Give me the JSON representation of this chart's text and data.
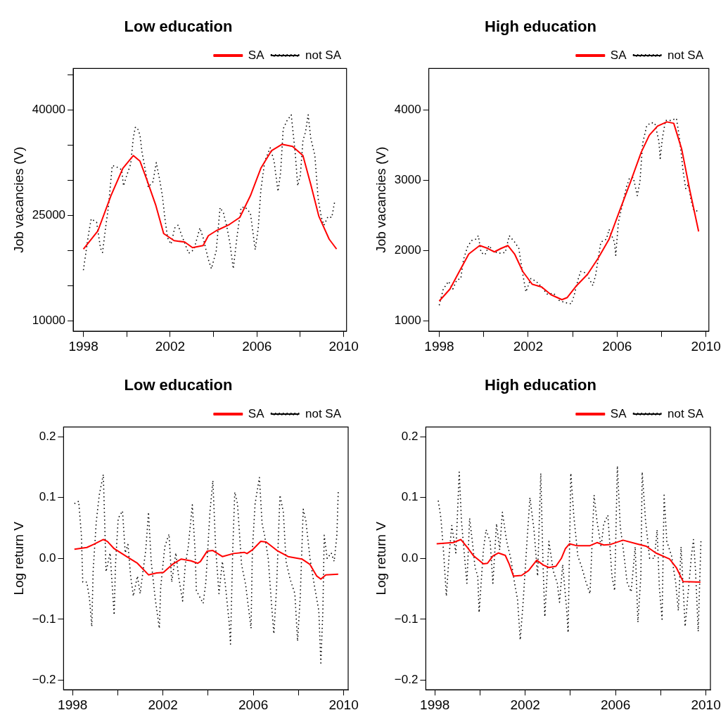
{
  "chart_data": [
    {
      "type": "line",
      "title": "Low education",
      "ylabel": "Job vacancies (V)",
      "legend": "top right",
      "xlim": [
        1997.53,
        2010.13
      ],
      "xticks": [
        1998,
        {
          "value": 2000,
          "label": null
        },
        2002,
        {
          "value": 2004,
          "label": null
        },
        2006,
        {
          "value": 2008,
          "label": null
        },
        2010
      ],
      "ylim": [
        8500,
        45900
      ],
      "yticks": [
        10000,
        {
          "value": 15000,
          "label": null
        },
        {
          "value": 20000,
          "label": null
        },
        25000,
        {
          "value": 30000,
          "label": null
        },
        {
          "value": 35000,
          "label": null
        },
        40000,
        {
          "value": 45000,
          "label": null
        }
      ],
      "series": [
        {
          "name": "SA",
          "color": "#ff0000",
          "line_style": "solid",
          "x": [
            1998.0,
            1998.67,
            1999.27,
            1999.82,
            2000.3,
            2000.61,
            2000.91,
            2001.33,
            2001.7,
            2002.18,
            2002.67,
            2003.03,
            2003.52,
            2003.76,
            2004.12,
            2004.73,
            2005.21,
            2005.7,
            2006.18,
            2006.67,
            2007.15,
            2007.64,
            2008.12,
            2008.48,
            2008.85,
            2009.33,
            2009.67
          ],
          "values": [
            20200,
            22800,
            27800,
            31700,
            33500,
            32700,
            30200,
            26500,
            22400,
            21400,
            21200,
            20400,
            20700,
            22100,
            22800,
            23700,
            24700,
            27800,
            31700,
            34200,
            35100,
            34800,
            33500,
            29400,
            24900,
            21600,
            20200
          ]
        },
        {
          "name": "not SA",
          "color": "#000000",
          "line_style": "dotted",
          "x": [
            1998.0,
            1998.12,
            1998.24,
            1998.36,
            1998.61,
            1998.79,
            1998.88,
            1999.03,
            1999.15,
            1999.33,
            1999.52,
            1999.76,
            1999.85,
            2000.0,
            2000.18,
            2000.3,
            2000.39,
            2000.48,
            2000.61,
            2000.7,
            2000.85,
            2000.99,
            2001.21,
            2001.36,
            2001.52,
            2001.64,
            2001.76,
            2001.88,
            2002.04,
            2002.21,
            2002.36,
            2002.55,
            2002.85,
            2003.09,
            2003.37,
            2003.52,
            2003.76,
            2003.9,
            2004.12,
            2004.3,
            2004.46,
            2004.61,
            2004.75,
            2004.91,
            2005.09,
            2005.27,
            2005.45,
            2005.7,
            2005.92,
            2006.06,
            2006.18,
            2006.36,
            2006.61,
            2006.79,
            2006.97,
            2007.09,
            2007.21,
            2007.39,
            2007.58,
            2007.76,
            2007.88,
            2008.0,
            2008.12,
            2008.24,
            2008.36,
            2008.48,
            2008.67,
            2008.82,
            2008.97,
            2009.09,
            2009.27,
            2009.45,
            2009.58
          ],
          "values": [
            17200,
            19800,
            22400,
            24500,
            24000,
            20300,
            19700,
            23400,
            26100,
            32100,
            31900,
            31500,
            29200,
            30700,
            32300,
            36000,
            37500,
            37500,
            36400,
            34000,
            31500,
            29000,
            29800,
            32500,
            30000,
            27800,
            24500,
            21800,
            20900,
            23200,
            23600,
            22000,
            19600,
            20100,
            23200,
            21800,
            18700,
            17400,
            19900,
            26100,
            25300,
            23400,
            21100,
            17400,
            22200,
            26100,
            26200,
            25300,
            20100,
            23200,
            28600,
            32700,
            34600,
            32700,
            28400,
            31100,
            37300,
            38500,
            39300,
            34000,
            29200,
            30700,
            35600,
            36900,
            39300,
            36000,
            33500,
            27400,
            24700,
            23600,
            24800,
            24700,
            26900
          ]
        }
      ]
    },
    {
      "type": "line",
      "title": "High education",
      "ylabel": "Job vacancies (V)",
      "legend": "top right",
      "xlim": [
        1997.53,
        2010.13
      ],
      "xticks": [
        1998,
        {
          "value": 2000,
          "label": null
        },
        2002,
        {
          "value": 2004,
          "label": null
        },
        2006,
        {
          "value": 2008,
          "label": null
        },
        2010
      ],
      "ylim": [
        850,
        4590
      ],
      "yticks": [
        1000,
        2000,
        3000,
        4000
      ],
      "series": [
        {
          "name": "SA",
          "color": "#ff0000",
          "line_style": "solid",
          "x": [
            1998.0,
            1998.48,
            1998.97,
            1999.33,
            1999.82,
            2000.18,
            2000.48,
            2000.79,
            2001.09,
            2001.39,
            2001.76,
            2002.18,
            2002.61,
            2003.03,
            2003.52,
            2003.76,
            2004.18,
            2004.67,
            2005.15,
            2005.64,
            2006.12,
            2006.61,
            2007.09,
            2007.45,
            2007.82,
            2008.24,
            2008.55,
            2008.91,
            2009.27,
            2009.67
          ],
          "values": [
            1280,
            1450,
            1740,
            1950,
            2070,
            2030,
            1980,
            2030,
            2070,
            1950,
            1700,
            1520,
            1480,
            1370,
            1300,
            1330,
            1500,
            1660,
            1890,
            2160,
            2570,
            2980,
            3400,
            3640,
            3770,
            3830,
            3810,
            3440,
            2860,
            2270
          ]
        },
        {
          "name": "not SA",
          "color": "#000000",
          "line_style": "dotted",
          "x": [
            1998.0,
            1998.18,
            1998.42,
            1998.61,
            1998.79,
            1998.97,
            1999.09,
            1999.27,
            1999.45,
            1999.64,
            1999.76,
            1999.88,
            2000.06,
            2000.24,
            2000.42,
            2000.67,
            2000.97,
            2001.15,
            2001.39,
            2001.58,
            2001.76,
            2001.9,
            2002.12,
            2002.36,
            2002.61,
            2002.85,
            2003.15,
            2003.39,
            2003.64,
            2003.94,
            2004.06,
            2004.24,
            2004.36,
            2004.61,
            2004.91,
            2005.03,
            2005.27,
            2005.52,
            2005.64,
            2005.88,
            2005.94,
            2006.06,
            2006.24,
            2006.42,
            2006.55,
            2006.73,
            2006.91,
            2007.03,
            2007.15,
            2007.33,
            2007.52,
            2007.7,
            2007.88,
            2007.94,
            2008.04,
            2008.18,
            2008.42,
            2008.67,
            2008.79,
            2008.88,
            2008.97,
            2009.09,
            2009.21,
            2009.33,
            2009.45,
            2009.64
          ],
          "values": [
            1220,
            1450,
            1560,
            1450,
            1580,
            1600,
            1870,
            2050,
            2140,
            2160,
            2210,
            1970,
            1940,
            2070,
            1990,
            1960,
            1970,
            2210,
            2120,
            2030,
            1660,
            1410,
            1600,
            1560,
            1480,
            1380,
            1390,
            1290,
            1260,
            1240,
            1350,
            1580,
            1700,
            1680,
            1500,
            1640,
            2120,
            2160,
            2300,
            2120,
            1930,
            2400,
            2650,
            2900,
            3020,
            3040,
            2780,
            2980,
            3520,
            3770,
            3820,
            3810,
            3560,
            3310,
            3600,
            3850,
            3850,
            3880,
            3640,
            3400,
            3130,
            2880,
            2940,
            2710,
            2570,
            2560
          ]
        }
      ]
    },
    {
      "type": "line",
      "title": "Low education",
      "ylabel": "Log return V",
      "legend": "top right",
      "xlim": [
        1997.6,
        2010.2
      ],
      "xticks": [
        1998,
        {
          "value": 2000,
          "label": null
        },
        2002,
        {
          "value": 2004,
          "label": null
        },
        2006,
        {
          "value": 2008,
          "label": null
        },
        2010
      ],
      "ylim": [
        -0.216,
        0.216
      ],
      "yticks": [
        {
          "value": -0.2,
          "label": "−0.2"
        },
        {
          "value": -0.1,
          "label": "−0.1"
        },
        {
          "value": 0,
          "label": "0.0"
        },
        0.1,
        0.2
      ],
      "series": [
        {
          "name": "SA",
          "color": "#ff0000",
          "line_style": "solid",
          "x": [
            1998.08,
            1998.63,
            1998.93,
            1999.36,
            1999.54,
            1999.84,
            2000.39,
            2000.87,
            2001.36,
            2001.72,
            2002.02,
            2002.45,
            2002.81,
            2003.24,
            2003.54,
            2003.66,
            2003.96,
            2004.21,
            2004.63,
            2005.12,
            2005.6,
            2005.72,
            2005.96,
            2006.33,
            2006.57,
            2007.05,
            2007.54,
            2008.15,
            2008.51,
            2008.81,
            2008.99,
            2009.21,
            2009.76
          ],
          "values": [
            0.015,
            0.018,
            0.023,
            0.031,
            0.028,
            0.016,
            0.003,
            -0.008,
            -0.027,
            -0.024,
            -0.023,
            -0.009,
            -0.001,
            -0.004,
            -0.008,
            -0.005,
            0.012,
            0.013,
            0.003,
            0.008,
            0.01,
            0.008,
            0.014,
            0.028,
            0.027,
            0.013,
            0.003,
            -0.001,
            -0.01,
            -0.029,
            -0.034,
            -0.027,
            -0.026
          ]
        },
        {
          "name": "not SA",
          "color": "#000000",
          "line_style": "dotted",
          "x": [
            1998.08,
            1998.27,
            1998.39,
            1998.45,
            1998.63,
            1998.75,
            1998.85,
            1998.91,
            1999.05,
            1999.18,
            1999.36,
            1999.42,
            1999.48,
            1999.66,
            1999.84,
            1999.9,
            2000.02,
            2000.21,
            2000.33,
            2000.45,
            2000.57,
            2000.69,
            2000.87,
            2000.99,
            2001.24,
            2001.36,
            2001.48,
            2001.66,
            2001.84,
            2001.9,
            2002.08,
            2002.27,
            2002.39,
            2002.57,
            2002.69,
            2002.87,
            2002.99,
            2003.12,
            2003.3,
            2003.42,
            2003.48,
            2003.78,
            2003.9,
            2004.08,
            2004.21,
            2004.33,
            2004.48,
            2004.63,
            2004.75,
            2004.93,
            2004.99,
            2005.09,
            2005.18,
            2005.3,
            2005.48,
            2005.66,
            2005.9,
            2005.96,
            2006.08,
            2006.27,
            2006.39,
            2006.5,
            2006.66,
            2006.81,
            2006.91,
            2007.03,
            2007.18,
            2007.33,
            2007.45,
            2007.63,
            2007.84,
            2007.96,
            2008.08,
            2008.21,
            2008.33,
            2008.51,
            2008.72,
            2008.9,
            2008.99,
            2009.08,
            2009.14,
            2009.27,
            2009.45,
            2009.58,
            2009.7,
            2009.76
          ],
          "values": [
            0.09,
            0.094,
            0.038,
            -0.039,
            -0.039,
            -0.067,
            -0.112,
            -0.02,
            0.061,
            0.104,
            0.138,
            0.061,
            -0.022,
            0.009,
            -0.093,
            -0.01,
            0.066,
            0.078,
            0.009,
            0.023,
            -0.029,
            -0.062,
            -0.029,
            -0.058,
            0.014,
            0.076,
            -0.005,
            -0.067,
            -0.115,
            -0.048,
            0.019,
            0.04,
            -0.039,
            0.009,
            -0.029,
            -0.07,
            -0.01,
            0.019,
            0.088,
            0.014,
            -0.053,
            -0.074,
            -0.039,
            0.076,
            0.128,
            0.019,
            -0.058,
            -0.005,
            -0.039,
            -0.105,
            -0.141,
            0.014,
            0.109,
            0.09,
            -0.01,
            -0.043,
            -0.115,
            0.014,
            0.09,
            0.133,
            0.057,
            0.038,
            0.0,
            -0.077,
            -0.124,
            -0.048,
            0.104,
            0.076,
            -0.005,
            -0.034,
            -0.058,
            -0.136,
            -0.062,
            0.081,
            0.061,
            0.0,
            -0.048,
            -0.086,
            -0.172,
            -0.086,
            0.038,
            0.0,
            0.009,
            -0.005,
            0.038,
            0.109
          ]
        }
      ]
    },
    {
      "type": "line",
      "title": "High education",
      "ylabel": "Log return V",
      "legend": "top right",
      "xlim": [
        1997.6,
        2010.2
      ],
      "xticks": [
        1998,
        {
          "value": 2000,
          "label": null
        },
        2002,
        {
          "value": 2004,
          "label": null
        },
        2006,
        {
          "value": 2008,
          "label": null
        },
        2010
      ],
      "ylim": [
        -0.216,
        0.216
      ],
      "yticks": [
        {
          "value": -0.2,
          "label": "−0.2"
        },
        {
          "value": -0.1,
          "label": "−0.1"
        },
        {
          "value": 0,
          "label": "0.0"
        },
        0.1,
        0.2
      ],
      "series": [
        {
          "name": "SA",
          "color": "#ff0000",
          "line_style": "solid",
          "x": [
            1998.08,
            1998.81,
            1999.15,
            1999.42,
            1999.72,
            2000.15,
            2000.33,
            2000.57,
            2000.81,
            2001.12,
            2001.3,
            2001.48,
            2001.84,
            2002.15,
            2002.51,
            2002.81,
            2003.05,
            2003.36,
            2003.6,
            2003.78,
            2003.96,
            2004.27,
            2004.87,
            2005.18,
            2005.48,
            2005.78,
            2006.33,
            2006.93,
            2007.36,
            2007.78,
            2008.39,
            2008.69,
            2008.99,
            2009.76
          ],
          "values": [
            0.024,
            0.026,
            0.031,
            0.019,
            0.004,
            -0.009,
            -0.008,
            0.004,
            0.009,
            0.005,
            -0.01,
            -0.029,
            -0.028,
            -0.02,
            -0.003,
            -0.011,
            -0.015,
            -0.013,
            0.0,
            0.016,
            0.024,
            0.021,
            0.021,
            0.026,
            0.022,
            0.023,
            0.03,
            0.024,
            0.02,
            0.009,
            -0.001,
            -0.015,
            -0.038,
            -0.039
          ]
        },
        {
          "name": "not SA",
          "color": "#000000",
          "line_style": "dotted",
          "x": [
            1998.15,
            1998.27,
            1998.39,
            1998.51,
            1998.63,
            1998.75,
            1998.93,
            1999.08,
            1999.18,
            1999.3,
            1999.42,
            1999.54,
            1999.66,
            1999.78,
            1999.9,
            1999.96,
            2000.15,
            2000.27,
            2000.45,
            2000.57,
            2000.73,
            2000.87,
            2000.99,
            2001.18,
            2001.36,
            2001.54,
            2001.66,
            2001.78,
            2001.9,
            2002.08,
            2002.21,
            2002.39,
            2002.55,
            2002.69,
            2002.79,
            2002.87,
            2003.05,
            2003.24,
            2003.42,
            2003.52,
            2003.66,
            2003.84,
            2003.9,
            2004.02,
            2004.15,
            2004.33,
            2004.51,
            2004.69,
            2004.87,
            2005.05,
            2005.18,
            2005.36,
            2005.48,
            2005.66,
            2005.84,
            2005.96,
            2006.08,
            2006.21,
            2006.33,
            2006.51,
            2006.69,
            2006.87,
            2006.99,
            2007.12,
            2007.18,
            2007.33,
            2007.51,
            2007.72,
            2007.84,
            2007.94,
            2008.06,
            2008.15,
            2008.27,
            2008.48,
            2008.66,
            2008.78,
            2008.9,
            2009.02,
            2009.08,
            2009.36,
            2009.45,
            2009.54,
            2009.66,
            2009.78
          ],
          "values": [
            0.095,
            0.066,
            0.009,
            -0.062,
            0.004,
            0.054,
            0.009,
            0.142,
            0.061,
            0.009,
            -0.041,
            0.066,
            0.028,
            -0.015,
            -0.029,
            -0.089,
            0.014,
            0.047,
            0.028,
            -0.041,
            0.057,
            0.014,
            0.076,
            0.028,
            0.0,
            -0.043,
            -0.067,
            -0.134,
            -0.077,
            0.028,
            0.1,
            0.047,
            -0.029,
            0.14,
            -0.01,
            -0.096,
            0.028,
            -0.02,
            -0.041,
            -0.072,
            -0.01,
            -0.086,
            -0.122,
            0.14,
            0.071,
            0.004,
            -0.015,
            -0.039,
            -0.058,
            0.104,
            0.061,
            0.019,
            0.057,
            0.071,
            -0.029,
            -0.053,
            0.152,
            0.052,
            0.019,
            -0.039,
            -0.055,
            0.019,
            -0.105,
            -0.029,
            0.142,
            0.061,
            0.0,
            0.0,
            0.047,
            -0.048,
            -0.1,
            0.104,
            0.028,
            0.004,
            -0.039,
            -0.086,
            0.019,
            -0.067,
            -0.112,
            0.004,
            0.031,
            -0.02,
            -0.12,
            0.028
          ]
        }
      ]
    }
  ]
}
